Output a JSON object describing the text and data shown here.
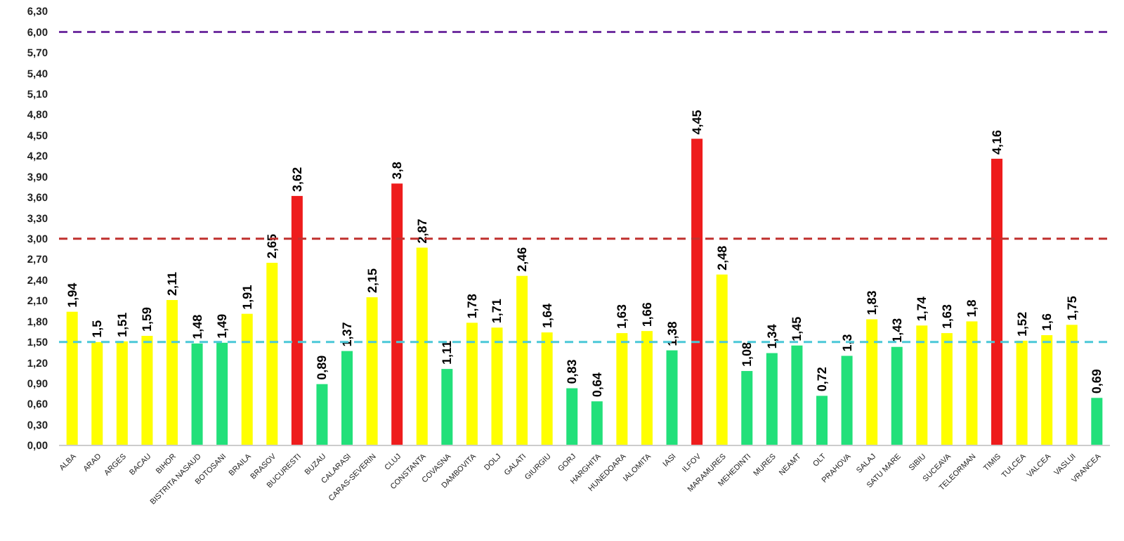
{
  "chart_data": {
    "type": "bar",
    "categories": [
      "ALBA",
      "ARAD",
      "ARGES",
      "BACAU",
      "BIHOR",
      "BISTRITA NASAUD",
      "BOTOSANI",
      "BRAILA",
      "BRASOV",
      "BUCURESTI",
      "BUZAU",
      "CALARASI",
      "CARAS-SEVERIN",
      "CLUJ",
      "CONSTANTA",
      "COVASNA",
      "DAMBOVITA",
      "DOLJ",
      "GALATI",
      "GIURGIU",
      "GORJ",
      "HARGHITA",
      "HUNEDOARA",
      "IALOMITA",
      "IASI",
      "ILFOV",
      "MARAMURES",
      "MEHEDINTI",
      "MURES",
      "NEAMT",
      "OLT",
      "PRAHOVA",
      "SALAJ",
      "SATU MARE",
      "SIBIU",
      "SUCEAVA",
      "TELEORMAN",
      "TIMIS",
      "TULCEA",
      "VALCEA",
      "VASLUI",
      "VRANCEA"
    ],
    "values": [
      1.94,
      1.5,
      1.51,
      1.59,
      2.11,
      1.48,
      1.49,
      1.91,
      2.65,
      3.62,
      0.89,
      1.37,
      2.15,
      3.8,
      2.87,
      1.11,
      1.78,
      1.71,
      2.46,
      1.64,
      0.83,
      0.64,
      1.63,
      1.66,
      1.38,
      4.45,
      2.48,
      1.08,
      1.34,
      1.45,
      0.72,
      1.3,
      1.83,
      1.43,
      1.74,
      1.63,
      1.8,
      4.16,
      1.52,
      1.6,
      1.75,
      0.69
    ],
    "value_labels": [
      "1,94",
      "1,5",
      "1,51",
      "1,59",
      "2,11",
      "1,48",
      "1,49",
      "1,91",
      "2,65",
      "3,62",
      "0,89",
      "1,37",
      "2,15",
      "3,8",
      "2,87",
      "1,11",
      "1,78",
      "1,71",
      "2,46",
      "1,64",
      "0,83",
      "0,64",
      "1,63",
      "1,66",
      "1,38",
      "4,45",
      "2,48",
      "1,08",
      "1,34",
      "1,45",
      "0,72",
      "1,3",
      "1,83",
      "1,43",
      "1,74",
      "1,63",
      "1,8",
      "4,16",
      "1,52",
      "1,6",
      "1,75",
      "0,69"
    ],
    "colors": [
      "#ffff00",
      "#ffff00",
      "#ffff00",
      "#ffff00",
      "#ffff00",
      "#22e07a",
      "#22e07a",
      "#ffff00",
      "#ffff00",
      "#ee1c1c",
      "#22e07a",
      "#22e07a",
      "#ffff00",
      "#ee1c1c",
      "#ffff00",
      "#22e07a",
      "#ffff00",
      "#ffff00",
      "#ffff00",
      "#ffff00",
      "#22e07a",
      "#22e07a",
      "#ffff00",
      "#ffff00",
      "#22e07a",
      "#ee1c1c",
      "#ffff00",
      "#22e07a",
      "#22e07a",
      "#22e07a",
      "#22e07a",
      "#22e07a",
      "#ffff00",
      "#22e07a",
      "#ffff00",
      "#ffff00",
      "#ffff00",
      "#ee1c1c",
      "#ffff00",
      "#ffff00",
      "#ffff00",
      "#22e07a"
    ],
    "ylim": [
      0,
      6.3
    ],
    "yticks": [
      {
        "value": 0,
        "label": "0,00"
      },
      {
        "value": 0.3,
        "label": "0,30"
      },
      {
        "value": 0.6,
        "label": "0,60"
      },
      {
        "value": 0.9,
        "label": "0,90"
      },
      {
        "value": 1.2,
        "label": "1,20"
      },
      {
        "value": 1.5,
        "label": "1,50"
      },
      {
        "value": 1.8,
        "label": "1,80"
      },
      {
        "value": 2.1,
        "label": "2,10"
      },
      {
        "value": 2.4,
        "label": "2,40"
      },
      {
        "value": 2.7,
        "label": "2,70"
      },
      {
        "value": 3,
        "label": "3,00"
      },
      {
        "value": 3.3,
        "label": "3,30"
      },
      {
        "value": 3.6,
        "label": "3,60"
      },
      {
        "value": 3.9,
        "label": "3,90"
      },
      {
        "value": 4.2,
        "label": "4,20"
      },
      {
        "value": 4.5,
        "label": "4,50"
      },
      {
        "value": 4.8,
        "label": "4,80"
      },
      {
        "value": 5.1,
        "label": "5,10"
      },
      {
        "value": 5.4,
        "label": "5,40"
      },
      {
        "value": 5.7,
        "label": "5,70"
      },
      {
        "value": 6,
        "label": "6,00"
      },
      {
        "value": 6.3,
        "label": "6,30"
      }
    ],
    "ref_lines": [
      {
        "axis": "y",
        "value": 1.5,
        "color": "#4bc8d8",
        "line_style": "dashed"
      },
      {
        "axis": "y",
        "value": 3,
        "color": "#c0302e",
        "line_style": "dashed"
      },
      {
        "axis": "y",
        "value": 6,
        "color": "#7030a0",
        "line_style": "dashed"
      }
    ],
    "grid": false
  }
}
